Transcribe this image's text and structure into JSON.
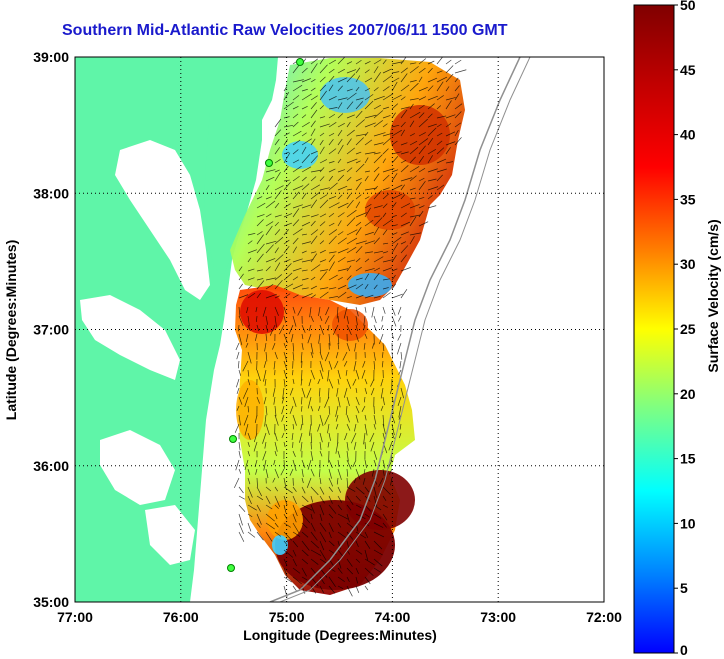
{
  "title": "Southern Mid-Atlantic Raw Velocities 2007/06/11 1500 GMT",
  "axes": {
    "xlabel": "Longitude (Degrees:Minutes)",
    "ylabel": "Latitude (Degrees:Minutes)",
    "x_ticks": [
      "77:00",
      "76:00",
      "75:00",
      "74:00",
      "73:00",
      "72:00"
    ],
    "y_ticks": [
      "39:00",
      "38:00",
      "37:00",
      "36:00",
      "35:00"
    ]
  },
  "colorbar": {
    "label": "Surface Velocity (cm/s)",
    "ticks": [
      "50",
      "45",
      "40",
      "35",
      "30",
      "25",
      "20",
      "15",
      "10",
      "5",
      "0"
    ],
    "range": [
      0,
      50
    ]
  },
  "map": {
    "lon_range": [
      -77,
      -72
    ],
    "lat_range": [
      35,
      39
    ],
    "grid": "dotted",
    "land_color": "#5ff5a8",
    "colormap": "jet"
  }
}
